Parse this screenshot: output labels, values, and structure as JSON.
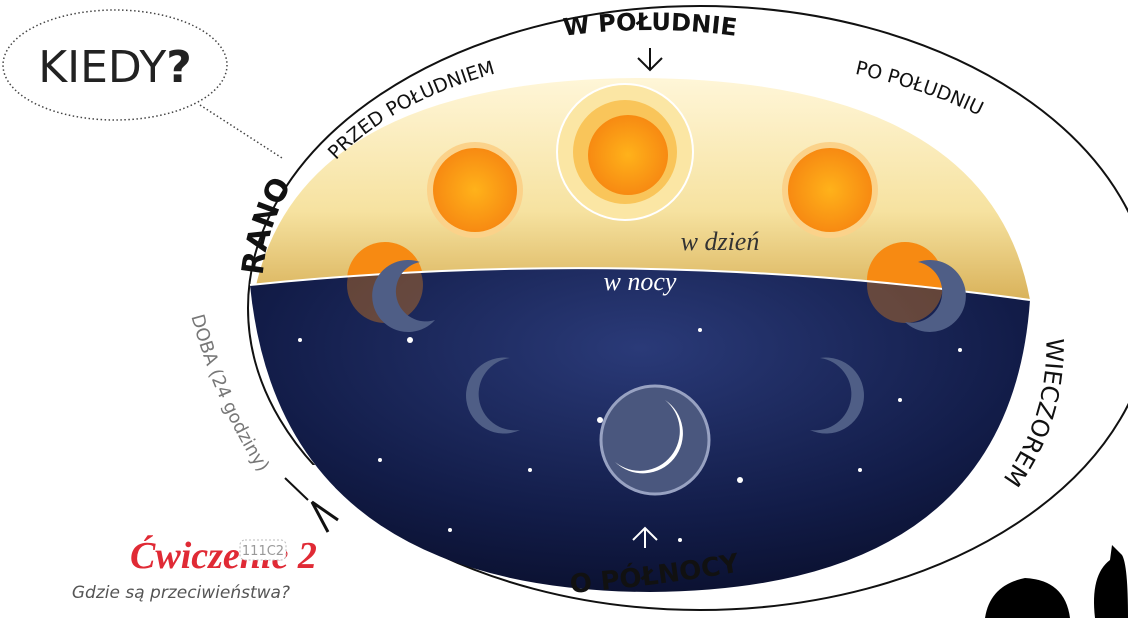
{
  "bubble": {
    "text": "KIEDY",
    "mark": "?"
  },
  "cycle": {
    "noon": "W POŁUDNIE",
    "before_noon": "PRZED POŁUDNIEM",
    "after_noon": "PO POŁUDNIU",
    "morning": "RANO",
    "evening": "WIECZOREM",
    "midnight": "O PÓŁNOCY",
    "day": "w dzień",
    "night": "w nocy",
    "day_night": "DOBA (24 godziny)"
  },
  "exercise": {
    "title": "Ćwiczenie 2",
    "code": "111C2",
    "question": "Gdzie są przeciwieństwa?"
  }
}
